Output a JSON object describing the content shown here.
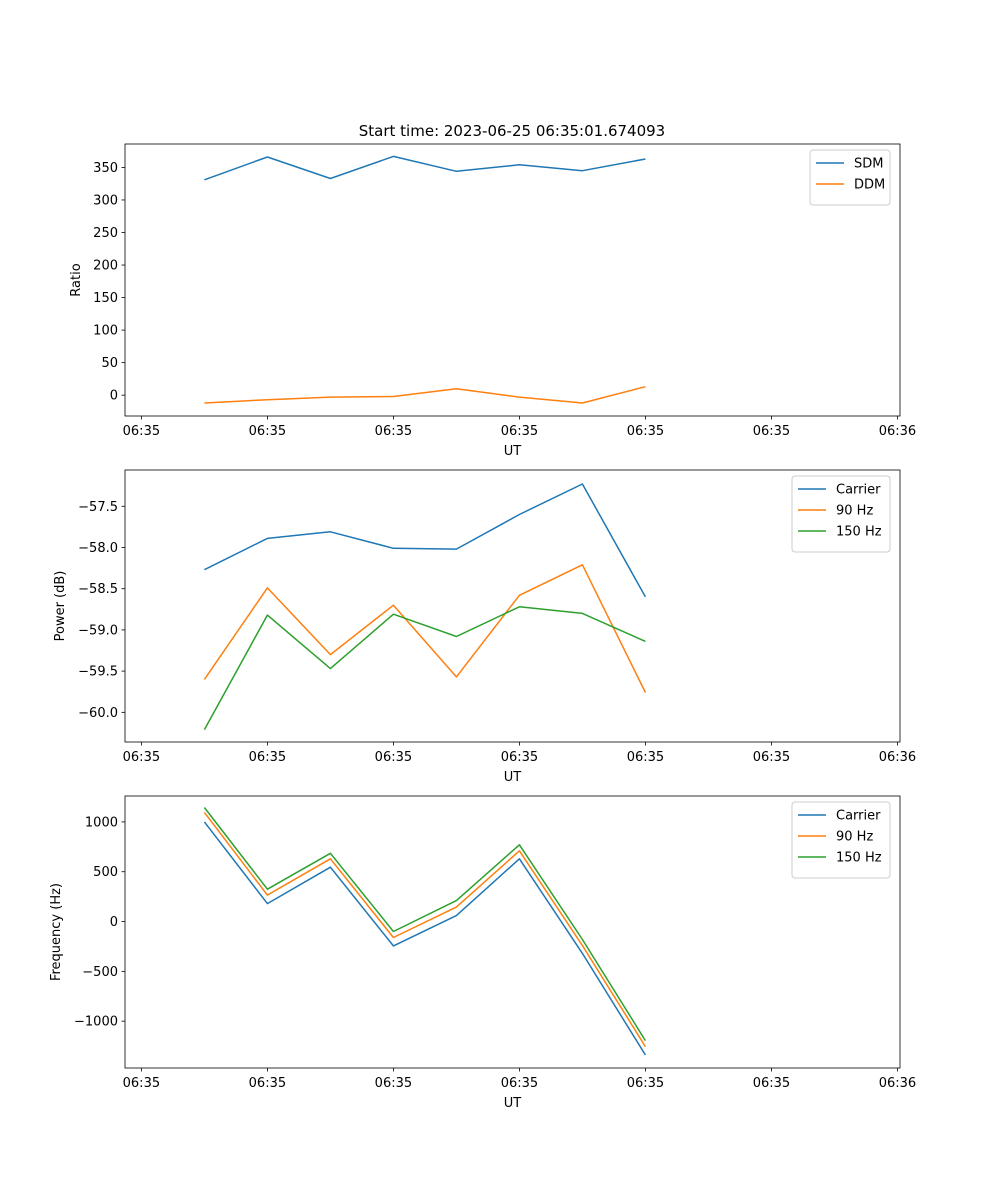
{
  "figure": {
    "title": "Start time: 2023-06-25 06:35:01.674093"
  },
  "chart_data": [
    {
      "type": "line",
      "xlabel": "UT",
      "ylabel": "Ratio",
      "x_tick_labels": [
        "06:35",
        "06:35",
        "06:35",
        "06:35",
        "06:35",
        "06:35",
        "06:36"
      ],
      "x_ticks": [
        0,
        1,
        2,
        3,
        4,
        5,
        6
      ],
      "x_points": [
        0.5,
        1.0,
        1.5,
        2.0,
        2.5,
        3.0,
        3.5,
        4.0
      ],
      "xlim": [
        -0.13,
        6.02
      ],
      "y_ticks": [
        0,
        50,
        100,
        150,
        200,
        250,
        300,
        350
      ],
      "ylim": [
        -32,
        386
      ],
      "legend": "top-right",
      "series": [
        {
          "name": "SDM",
          "color": "#1f77b4",
          "values": [
            331,
            366,
            333,
            367,
            344,
            354,
            345,
            363
          ]
        },
        {
          "name": "DDM",
          "color": "#ff7f0e",
          "values": [
            -12,
            -7,
            -3,
            -2,
            10,
            -3,
            -12,
            13
          ]
        }
      ]
    },
    {
      "type": "line",
      "xlabel": "UT",
      "ylabel": "Power (dB)",
      "x_tick_labels": [
        "06:35",
        "06:35",
        "06:35",
        "06:35",
        "06:35",
        "06:35",
        "06:36"
      ],
      "x_ticks": [
        0,
        1,
        2,
        3,
        4,
        5,
        6
      ],
      "x_points": [
        0.5,
        1.0,
        1.5,
        2.0,
        2.5,
        3.0,
        3.5,
        4.0
      ],
      "xlim": [
        -0.13,
        6.02
      ],
      "y_ticks": [
        -60.0,
        -59.5,
        -59.0,
        -58.5,
        -58.0,
        -57.5
      ],
      "y_tick_labels": [
        "−60.0",
        "−59.5",
        "−59.0",
        "−58.5",
        "−58.0",
        "−57.5"
      ],
      "ylim": [
        -60.36,
        -57.06
      ],
      "legend": "top-right",
      "series": [
        {
          "name": "Carrier",
          "color": "#1f77b4",
          "values": [
            -58.27,
            -57.89,
            -57.81,
            -58.01,
            -58.02,
            -57.6,
            -57.23,
            -58.6
          ]
        },
        {
          "name": "90 Hz",
          "color": "#ff7f0e",
          "values": [
            -59.6,
            -58.49,
            -59.3,
            -58.7,
            -59.57,
            -58.58,
            -58.21,
            -59.76
          ]
        },
        {
          "name": "150 Hz",
          "color": "#2ca02c",
          "values": [
            -60.21,
            -58.82,
            -59.47,
            -58.81,
            -59.08,
            -58.72,
            -58.8,
            -59.14
          ]
        }
      ]
    },
    {
      "type": "line",
      "xlabel": "UT",
      "ylabel": "Frequency (Hz)",
      "x_tick_labels": [
        "06:35",
        "06:35",
        "06:35",
        "06:35",
        "06:35",
        "06:35",
        "06:36"
      ],
      "x_ticks": [
        0,
        1,
        2,
        3,
        4,
        5,
        6
      ],
      "x_points": [
        0.5,
        1.0,
        1.5,
        2.0,
        2.5,
        3.0,
        3.5,
        4.0
      ],
      "xlim": [
        -0.13,
        6.02
      ],
      "y_ticks": [
        -1000,
        -500,
        0,
        500,
        1000
      ],
      "y_tick_labels": [
        "−1000",
        "−500",
        "0",
        "500",
        "1000"
      ],
      "ylim": [
        -1470,
        1260
      ],
      "legend": "top-right",
      "series": [
        {
          "name": "Carrier",
          "color": "#1f77b4",
          "values": [
            1000,
            180,
            545,
            -245,
            60,
            630,
            -320,
            -1340
          ]
        },
        {
          "name": "90 Hz",
          "color": "#ff7f0e",
          "values": [
            1095,
            265,
            630,
            -160,
            145,
            710,
            -240,
            -1255
          ]
        },
        {
          "name": "150 Hz",
          "color": "#2ca02c",
          "values": [
            1145,
            325,
            685,
            -100,
            210,
            770,
            -180,
            -1195
          ]
        }
      ]
    }
  ]
}
